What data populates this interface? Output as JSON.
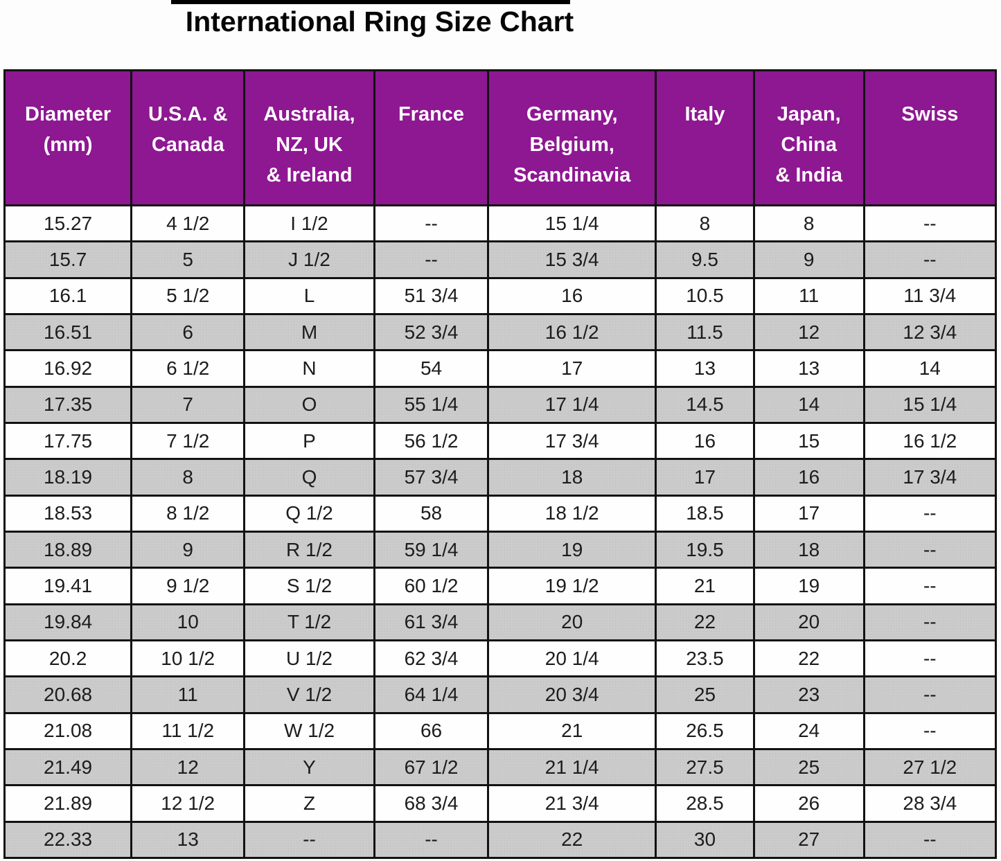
{
  "title": "International Ring Size Chart",
  "colors": {
    "header_bg": "#8e1792",
    "header_text": "#ffffff",
    "stripe_bg": "#cccbcb",
    "border": "#121212",
    "title_text": "#050505"
  },
  "chart_data": {
    "type": "table",
    "title": "International Ring Size Chart",
    "columns": [
      "Diameter (mm)",
      "U.S.A. & Canada",
      "Australia, NZ, UK & Ireland",
      "France",
      "Germany, Belgium, Scandinavia",
      "Italy",
      "Japan, China & India",
      "Swiss"
    ],
    "header_display": [
      "Diameter\n(mm)",
      "U.S.A. &\nCanada",
      "Australia,\nNZ, UK\n& Ireland",
      "France",
      "Germany,\nBelgium,\nScandinavia",
      "Italy",
      "Japan,\nChina\n& India",
      "Swiss"
    ],
    "empty_marker": "--",
    "layout": {
      "striped": true,
      "stripe_rows": "even",
      "grid": true,
      "header_position": "top"
    },
    "rows": [
      [
        "15.27",
        "4 1/2",
        "I 1/2",
        "--",
        "15 1/4",
        "8",
        "8",
        "--"
      ],
      [
        "15.7",
        "5",
        "J 1/2",
        "--",
        "15 3/4",
        "9.5",
        "9",
        "--"
      ],
      [
        "16.1",
        "5 1/2",
        "L",
        "51 3/4",
        "16",
        "10.5",
        "11",
        "11 3/4"
      ],
      [
        "16.51",
        "6",
        "M",
        "52 3/4",
        "16 1/2",
        "11.5",
        "12",
        "12 3/4"
      ],
      [
        "16.92",
        "6 1/2",
        "N",
        "54",
        "17",
        "13",
        "13",
        "14"
      ],
      [
        "17.35",
        "7",
        "O",
        "55 1/4",
        "17 1/4",
        "14.5",
        "14",
        "15 1/4"
      ],
      [
        "17.75",
        "7 1/2",
        "P",
        "56 1/2",
        "17 3/4",
        "16",
        "15",
        "16 1/2"
      ],
      [
        "18.19",
        "8",
        "Q",
        "57 3/4",
        "18",
        "17",
        "16",
        "17 3/4"
      ],
      [
        "18.53",
        "8 1/2",
        "Q 1/2",
        "58",
        "18 1/2",
        "18.5",
        "17",
        "--"
      ],
      [
        "18.89",
        "9",
        "R 1/2",
        "59 1/4",
        "19",
        "19.5",
        "18",
        "--"
      ],
      [
        "19.41",
        "9 1/2",
        "S 1/2",
        "60 1/2",
        "19 1/2",
        "21",
        "19",
        "--"
      ],
      [
        "19.84",
        "10",
        "T 1/2",
        "61 3/4",
        "20",
        "22",
        "20",
        "--"
      ],
      [
        "20.2",
        "10 1/2",
        "U 1/2",
        "62 3/4",
        "20 1/4",
        "23.5",
        "22",
        "--"
      ],
      [
        "20.68",
        "11",
        "V 1/2",
        "64 1/4",
        "20 3/4",
        "25",
        "23",
        "--"
      ],
      [
        "21.08",
        "11 1/2",
        "W 1/2",
        "66",
        "21",
        "26.5",
        "24",
        "--"
      ],
      [
        "21.49",
        "12",
        "Y",
        "67 1/2",
        "21 1/4",
        "27.5",
        "25",
        "27 1/2"
      ],
      [
        "21.89",
        "12 1/2",
        "Z",
        "68 3/4",
        "21 3/4",
        "28.5",
        "26",
        "28 3/4"
      ],
      [
        "22.33",
        "13",
        "--",
        "--",
        "22",
        "30",
        "27",
        "--"
      ]
    ]
  }
}
